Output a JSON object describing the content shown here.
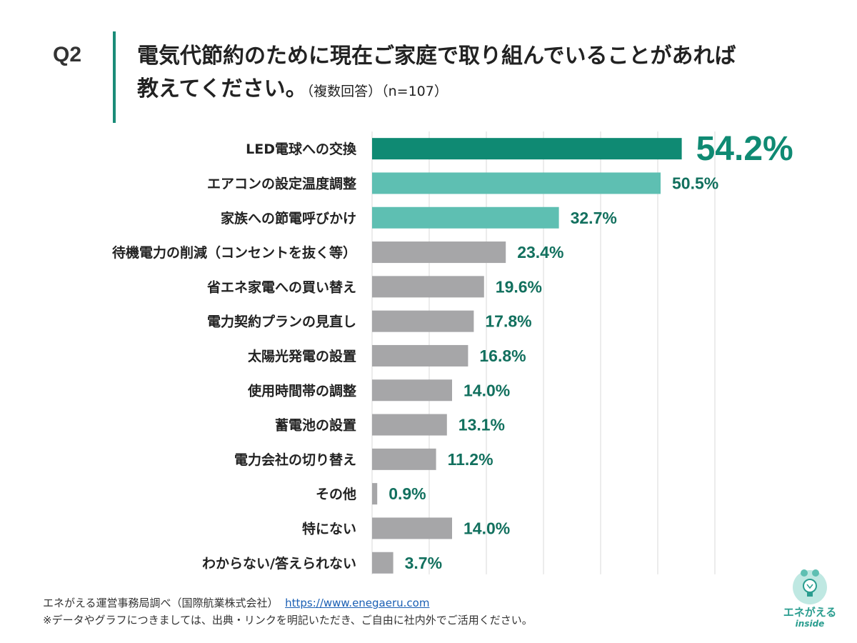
{
  "header": {
    "question_label": "Q2",
    "title_line1": "電気代節約のために現在ご家庭で取り組んでいることがあれば",
    "title_line2": "教えてください。",
    "title_note": "（複数回答）（n=107）"
  },
  "chart_data": {
    "type": "bar",
    "orientation": "horizontal",
    "title": "電気代節約のために現在ご家庭で取り組んでいることがあれば教えてください。",
    "xlim": [
      0,
      60
    ],
    "categories": [
      "LED電球への交換",
      "エアコンの設定温度調整",
      "家族への節電呼びかけ",
      "待機電力の削減（コンセントを抜く等）",
      "省エネ家電への買い替え",
      "電力契約プランの見直し",
      "太陽光発電の設置",
      "使用時間帯の調整",
      "蓄電池の設置",
      "電力会社の切り替え",
      "その他",
      "特にない",
      "わからない/答えられない"
    ],
    "values": [
      54.2,
      50.5,
      32.7,
      23.4,
      19.6,
      17.8,
      16.8,
      14.0,
      13.1,
      11.2,
      0.9,
      14.0,
      3.7
    ],
    "value_labels": [
      "54.2%",
      "50.5%",
      "32.7%",
      "23.4%",
      "19.6%",
      "17.8%",
      "16.8%",
      "14.0%",
      "13.1%",
      "11.2%",
      "0.9%",
      "14.0%",
      "3.7%"
    ],
    "gridlines": true
  },
  "colors": {
    "top1": "#0f8a73",
    "top2_3": "#5ebfb2",
    "other": "#a6a6a8",
    "label_value": "#12705e",
    "accent": "#1a8c78"
  },
  "footer": {
    "source": "エネがえる運営事務局調べ（国際航業株式会社）",
    "url": "https://www.enegaeru.com",
    "note": "※データやグラフにつきましては、出典・リンクを明記いただき、ご自由に社内外でご活用ください。"
  },
  "logo": {
    "name": "エネがえる",
    "sub": "inside"
  }
}
